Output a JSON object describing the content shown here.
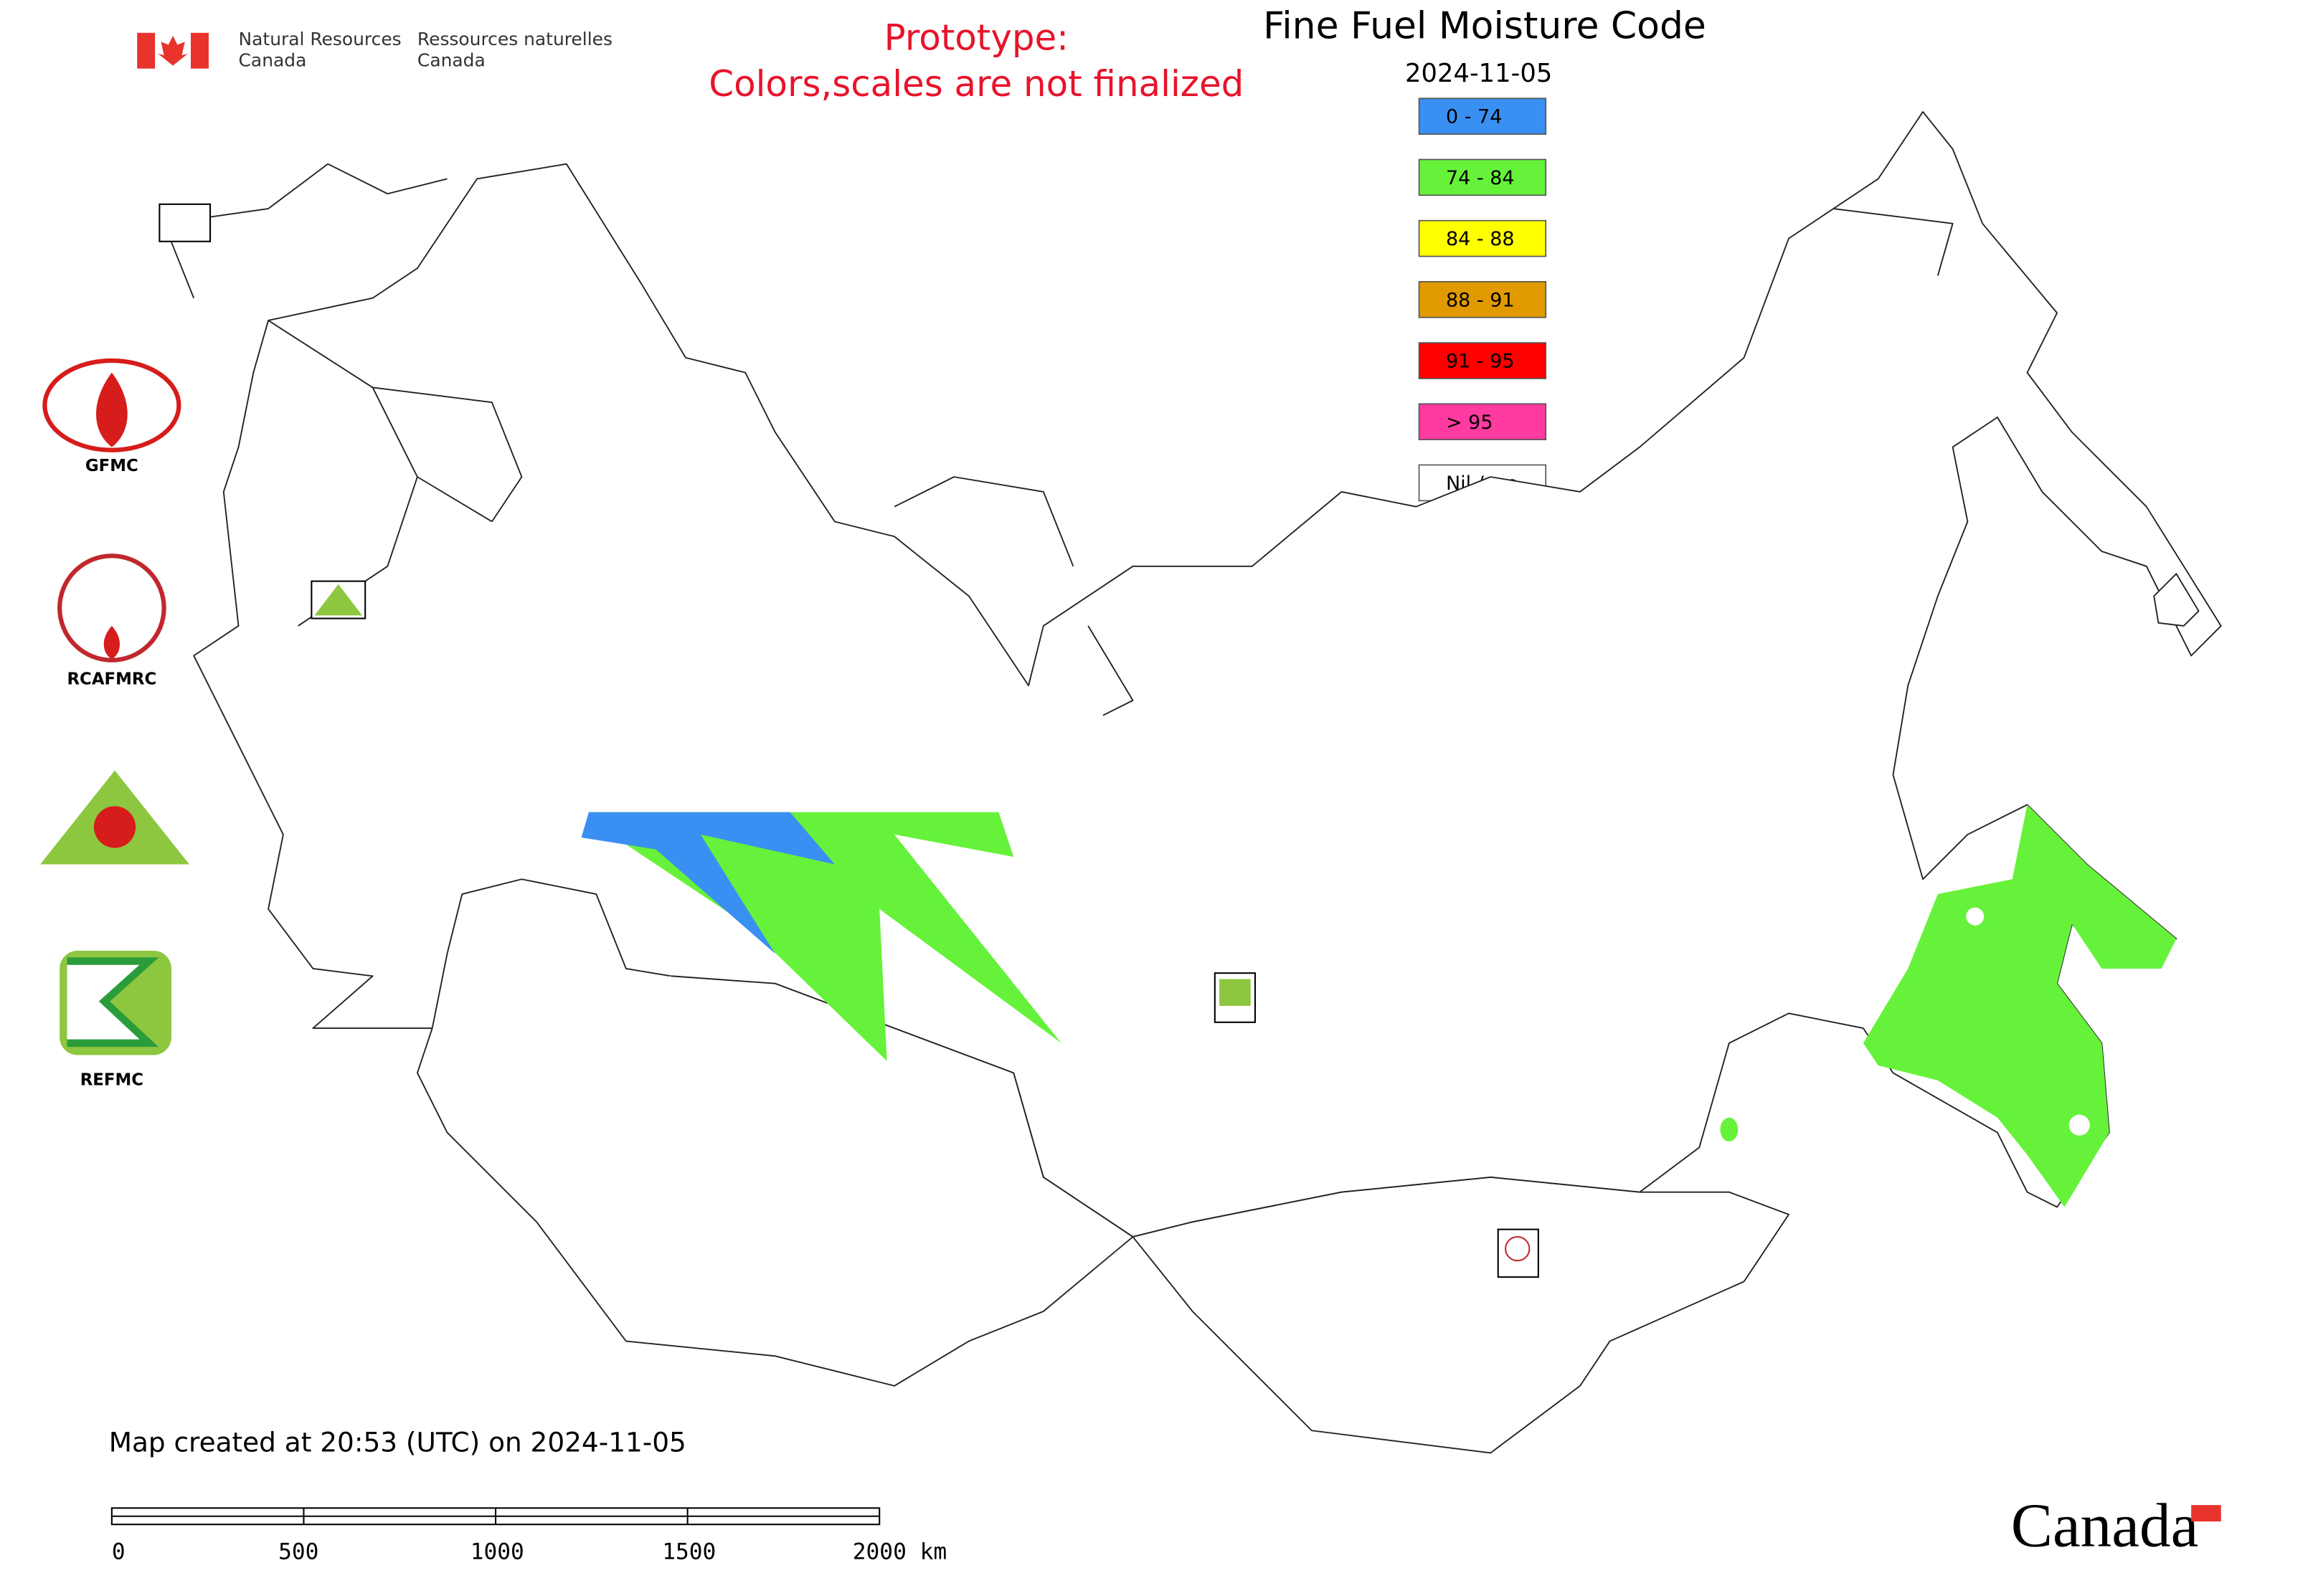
{
  "header": {
    "agency_en_1": "Natural Resources",
    "agency_en_2": "Canada",
    "agency_fr_1": "Ressources naturelles",
    "agency_fr_2": "Canada"
  },
  "notice": {
    "line_1": "Prototype:",
    "line_2": "Colors,scales are not finalized"
  },
  "title": "Fine Fuel Moisture Code",
  "date": "2024-11-05",
  "legend": [
    {
      "label": "0 - 74",
      "color": "#3a8ff2"
    },
    {
      "label": "74 - 84",
      "color": "#66f23a"
    },
    {
      "label": "84 - 88",
      "color": "#ffff00"
    },
    {
      "label": "88 - 91",
      "color": "#e09a00"
    },
    {
      "label": "91 - 95",
      "color": "#ff0000"
    },
    {
      "label": "> 95",
      "color": "#ff3aa0"
    },
    {
      "label": "Nil / s.o.",
      "color": "#ffffff"
    }
  ],
  "logos": [
    "GFMC",
    "RCAFMRC",
    "REFMC"
  ],
  "footer": {
    "created": "Map created at 20:53 (UTC) on 2024-11-05",
    "wordmark": "Canada"
  },
  "scale_bar": [
    "0",
    "500",
    "1000",
    "1500",
    "2000 km"
  ]
}
